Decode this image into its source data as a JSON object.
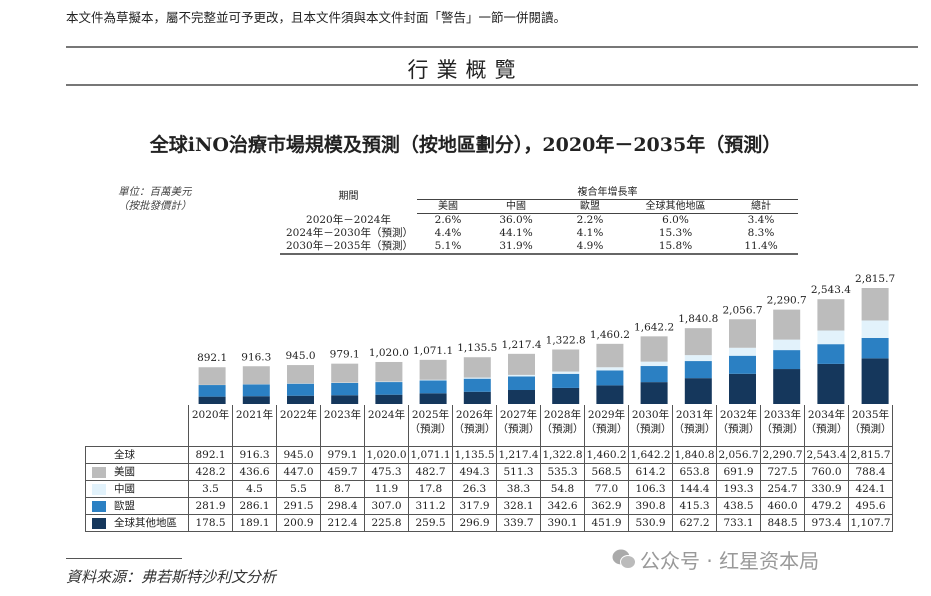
{
  "header": {
    "disclaimer": "本文件為草擬本，屬不完整並可予更改，且本文件須與本文件封面「警告」一節一併閱讀。",
    "section_title": "行業概覽"
  },
  "footer": {
    "source": "資料來源：弗若斯特沙利文分析",
    "watermark": "公众号 · 红星资本局"
  },
  "chart_data": {
    "type": "bar",
    "stacked": true,
    "title": "全球iNO治療市場規模及預測（按地區劃分），2020年－2035年（預測）",
    "unit_note": [
      "單位：百萬美元",
      "（按批發價計）"
    ],
    "categories": [
      "2020年",
      "2021年",
      "2022年",
      "2023年",
      "2024年",
      "2025年",
      "2026年",
      "2027年",
      "2028年",
      "2029年",
      "2030年",
      "2031年",
      "2032年",
      "2033年",
      "2034年",
      "2035年"
    ],
    "forecast_label": "（預測）",
    "forecast_from_index": 5,
    "total": {
      "name": "全球",
      "values": [
        "892.1",
        "916.3",
        "945.0",
        "979.1",
        "1,020.0",
        "1,071.1",
        "1,135.5",
        "1,217.4",
        "1,322.8",
        "1,460.2",
        "1,642.2",
        "1,840.8",
        "2,056.7",
        "2,290.7",
        "2,543.4",
        "2,815.7"
      ]
    },
    "series": [
      {
        "name": "美國",
        "color": "#bcbcbc",
        "values": [
          428.2,
          436.6,
          447.0,
          459.7,
          475.3,
          482.7,
          494.3,
          511.3,
          535.3,
          568.5,
          614.2,
          653.8,
          691.9,
          727.5,
          760.0,
          788.4
        ]
      },
      {
        "name": "中國",
        "color": "#e2f2fb",
        "values": [
          3.5,
          4.5,
          5.5,
          8.7,
          11.9,
          17.8,
          26.3,
          38.3,
          54.8,
          77.0,
          106.3,
          144.4,
          193.3,
          254.7,
          330.9,
          424.1
        ]
      },
      {
        "name": "歐盟",
        "color": "#2b80c3",
        "values": [
          281.9,
          286.1,
          291.5,
          298.4,
          307.0,
          311.2,
          317.9,
          328.1,
          342.6,
          362.9,
          390.8,
          415.3,
          438.5,
          460.0,
          479.2,
          495.6
        ]
      },
      {
        "name": "全球其他地區",
        "color": "#15375c",
        "values": [
          178.5,
          189.1,
          200.9,
          212.4,
          225.8,
          259.5,
          296.9,
          339.7,
          390.1,
          451.9,
          530.9,
          627.2,
          733.1,
          848.5,
          973.4,
          1107.7
        ]
      }
    ],
    "stack_order_bottom_to_top": [
      "全球其他地區",
      "歐盟",
      "中國",
      "美國"
    ],
    "cagr_table": {
      "period_header": "期間",
      "group_header": "複合年增長率",
      "columns": [
        "美國",
        "中國",
        "歐盟",
        "全球其他地區",
        "總計"
      ],
      "rows": [
        {
          "period": "2020年－2024年",
          "values": [
            "2.6%",
            "36.0%",
            "2.2%",
            "6.0%",
            "3.4%"
          ]
        },
        {
          "period": "2024年－2030年（預測）",
          "values": [
            "4.4%",
            "44.1%",
            "4.1%",
            "15.3%",
            "8.3%"
          ]
        },
        {
          "period": "2030年－2035年（預測）",
          "values": [
            "5.1%",
            "31.9%",
            "4.9%",
            "15.8%",
            "11.4%"
          ]
        }
      ]
    }
  }
}
